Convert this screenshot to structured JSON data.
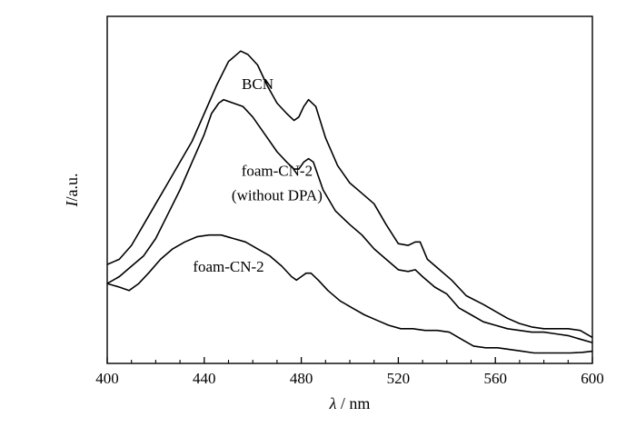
{
  "chart_data": {
    "type": "line",
    "xlabel_symbol": "λ",
    "xlabel_unit": "nm",
    "ylabel_symbol": "I",
    "ylabel_unit": "a.u.",
    "xlim": [
      400,
      600
    ],
    "x_ticks": [
      400,
      440,
      480,
      520,
      560,
      600
    ],
    "x_minor_step": 10,
    "grid": false,
    "y_ticks_shown": false,
    "ylim": [
      0,
      100
    ],
    "series": [
      {
        "name": "BCN",
        "points": [
          [
            400,
            28.5
          ],
          [
            405,
            30
          ],
          [
            410,
            34
          ],
          [
            415,
            40
          ],
          [
            420,
            46
          ],
          [
            425,
            52
          ],
          [
            430,
            58
          ],
          [
            435,
            64
          ],
          [
            440,
            72
          ],
          [
            445,
            80
          ],
          [
            450,
            87
          ],
          [
            455,
            90
          ],
          [
            458,
            89
          ],
          [
            462,
            86
          ],
          [
            466,
            80
          ],
          [
            470,
            75
          ],
          [
            474,
            72
          ],
          [
            477,
            70
          ],
          [
            479,
            71
          ],
          [
            481,
            74
          ],
          [
            483,
            76
          ],
          [
            486,
            74
          ],
          [
            490,
            65
          ],
          [
            495,
            57
          ],
          [
            500,
            52
          ],
          [
            505,
            49
          ],
          [
            510,
            46
          ],
          [
            515,
            40
          ],
          [
            520,
            34.5
          ],
          [
            524,
            34
          ],
          [
            527,
            35
          ],
          [
            529,
            35
          ],
          [
            532,
            30
          ],
          [
            537,
            27
          ],
          [
            542,
            24
          ],
          [
            548,
            19.5
          ],
          [
            555,
            17
          ],
          [
            560,
            15
          ],
          [
            565,
            13
          ],
          [
            570,
            11.5
          ],
          [
            575,
            10.5
          ],
          [
            580,
            10
          ],
          [
            585,
            10
          ],
          [
            590,
            10
          ],
          [
            595,
            9.5
          ],
          [
            600,
            7.5
          ]
        ]
      },
      {
        "name": "foam-CN-2\n(without DPA)",
        "points": [
          [
            400,
            23
          ],
          [
            405,
            25
          ],
          [
            410,
            28
          ],
          [
            415,
            31
          ],
          [
            420,
            36
          ],
          [
            425,
            43
          ],
          [
            430,
            50
          ],
          [
            435,
            58
          ],
          [
            440,
            66
          ],
          [
            443,
            72
          ],
          [
            446,
            75
          ],
          [
            448,
            76
          ],
          [
            452,
            75
          ],
          [
            456,
            74
          ],
          [
            460,
            71
          ],
          [
            465,
            66
          ],
          [
            470,
            61
          ],
          [
            474,
            58
          ],
          [
            477,
            56
          ],
          [
            479,
            56
          ],
          [
            481,
            58
          ],
          [
            483,
            59
          ],
          [
            485,
            58
          ],
          [
            489,
            50
          ],
          [
            494,
            44
          ],
          [
            500,
            40
          ],
          [
            505,
            37
          ],
          [
            510,
            33
          ],
          [
            515,
            30
          ],
          [
            520,
            27
          ],
          [
            524,
            26.5
          ],
          [
            527,
            27
          ],
          [
            530,
            25
          ],
          [
            535,
            22
          ],
          [
            540,
            20
          ],
          [
            545,
            16
          ],
          [
            550,
            14
          ],
          [
            555,
            12
          ],
          [
            560,
            11
          ],
          [
            565,
            10
          ],
          [
            570,
            9.5
          ],
          [
            575,
            9
          ],
          [
            580,
            9
          ],
          [
            585,
            8.5
          ],
          [
            590,
            8
          ],
          [
            595,
            7
          ],
          [
            600,
            6
          ]
        ]
      },
      {
        "name": "foam-CN-2",
        "points": [
          [
            400,
            23
          ],
          [
            405,
            22
          ],
          [
            409,
            21
          ],
          [
            413,
            23
          ],
          [
            417,
            26
          ],
          [
            422,
            30
          ],
          [
            427,
            33
          ],
          [
            432,
            35
          ],
          [
            437,
            36.5
          ],
          [
            442,
            37
          ],
          [
            447,
            37
          ],
          [
            452,
            36
          ],
          [
            457,
            35
          ],
          [
            462,
            33
          ],
          [
            467,
            31
          ],
          [
            472,
            28
          ],
          [
            476,
            25
          ],
          [
            478,
            24
          ],
          [
            480,
            25
          ],
          [
            482,
            26
          ],
          [
            484,
            26
          ],
          [
            487,
            24
          ],
          [
            491,
            21
          ],
          [
            496,
            18
          ],
          [
            501,
            16
          ],
          [
            506,
            14
          ],
          [
            511,
            12.5
          ],
          [
            516,
            11
          ],
          [
            521,
            10
          ],
          [
            526,
            10
          ],
          [
            531,
            9.5
          ],
          [
            536,
            9.5
          ],
          [
            541,
            9
          ],
          [
            546,
            7
          ],
          [
            551,
            5
          ],
          [
            556,
            4.5
          ],
          [
            561,
            4.5
          ],
          [
            566,
            4
          ],
          [
            571,
            3.5
          ],
          [
            576,
            3
          ],
          [
            581,
            3
          ],
          [
            586,
            3
          ],
          [
            591,
            3
          ],
          [
            596,
            3.2
          ],
          [
            600,
            3.5
          ]
        ]
      }
    ],
    "annotations": [
      {
        "text": "BCN",
        "x": 462,
        "y": 79
      },
      {
        "text": "foam-CN-2",
        "x": 470,
        "y": 54
      },
      {
        "text": "(without DPA)",
        "x": 470,
        "y": 47
      },
      {
        "text": "foam-CN-2",
        "x": 450,
        "y": 26.5
      }
    ]
  }
}
